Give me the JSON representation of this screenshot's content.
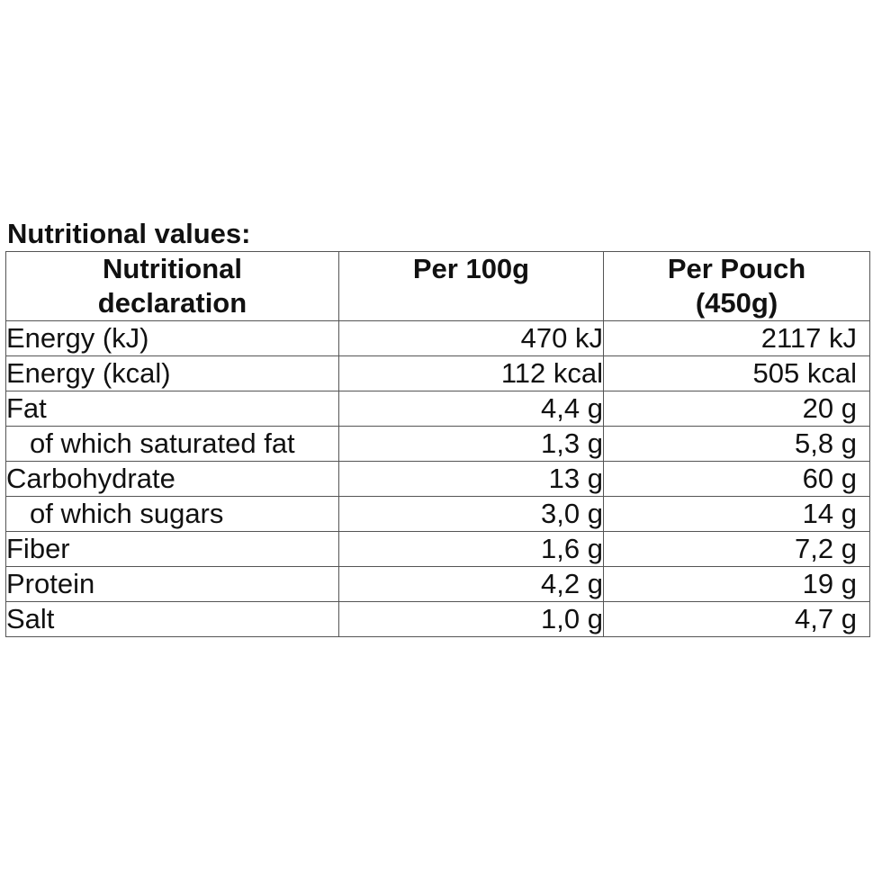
{
  "caption": "Nutritional values:",
  "header": {
    "col1_line1": "Nutritional",
    "col1_line2": "declaration",
    "col2": "Per 100g",
    "col3_line1": "Per Pouch",
    "col3_line2": "(450g)"
  },
  "rows": [
    {
      "name": "Energy (kJ)",
      "per100": "470 kJ",
      "perPouch": "2117 kJ"
    },
    {
      "name": "Energy (kcal)",
      "per100": "112 kcal",
      "perPouch": "505 kcal"
    },
    {
      "name": "Fat",
      "per100": "4,4 g",
      "perPouch": "20 g"
    },
    {
      "name": "of which saturated fat",
      "per100": "1,3 g",
      "perPouch": "5,8 g"
    },
    {
      "name": "Carbohydrate",
      "per100": "13 g",
      "perPouch": "60 g"
    },
    {
      "name": "of which sugars",
      "per100": "3,0 g",
      "perPouch": "14 g"
    },
    {
      "name": "Fiber",
      "per100": "1,6 g",
      "perPouch": "7,2 g"
    },
    {
      "name": "Protein",
      "per100": "4,2 g",
      "perPouch": "19 g"
    },
    {
      "name": "Salt",
      "per100": "1,0 g",
      "perPouch": "4,7 g"
    }
  ]
}
